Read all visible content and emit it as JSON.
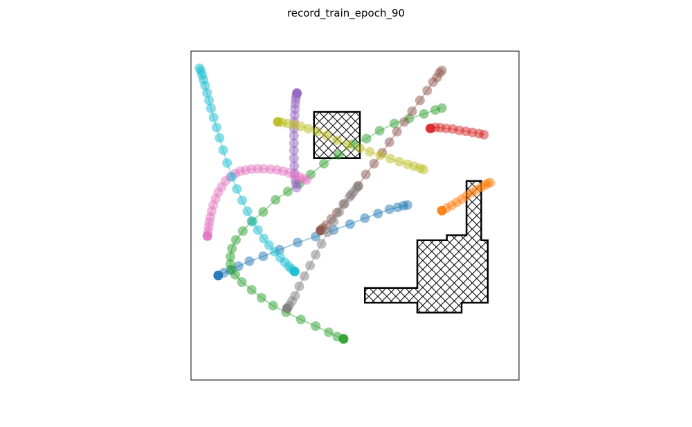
{
  "title": "record_train_epoch_90",
  "chart_data": {
    "type": "scatter",
    "title": "record_train_epoch_90",
    "xlabel": "",
    "ylabel": "",
    "xlim": [
      0,
      100
    ],
    "ylim": [
      0,
      100
    ],
    "grid": false,
    "axis_ticks": false,
    "obstacles": [
      {
        "name": "obstacle-square",
        "hatch": "cross",
        "points": [
          [
            37.5,
            81.5
          ],
          [
            51.5,
            81.5
          ],
          [
            51.5,
            67.5
          ],
          [
            37.5,
            67.5
          ]
        ]
      },
      {
        "name": "obstacle-cross",
        "hatch": "cross",
        "points": [
          [
            53,
            28
          ],
          [
            69,
            28
          ],
          [
            69,
            42.5
          ],
          [
            78,
            42.5
          ],
          [
            78,
            44
          ],
          [
            84,
            44
          ],
          [
            84,
            60.5
          ],
          [
            88.5,
            60.5
          ],
          [
            88.5,
            42.5
          ],
          [
            90.5,
            42.5
          ],
          [
            90.5,
            23.5
          ],
          [
            82.5,
            23.5
          ],
          [
            82.5,
            20.5
          ],
          [
            69,
            20.5
          ],
          [
            69,
            23.5
          ],
          [
            53,
            23.5
          ]
        ]
      }
    ],
    "series": [
      {
        "color": "#1f77b4",
        "points": [
          [
            8.3,
            31.8
          ],
          [
            10,
            32.6
          ],
          [
            12,
            33.4
          ],
          [
            14.5,
            34.6
          ],
          [
            17.8,
            36.1
          ],
          [
            22,
            37.6
          ],
          [
            27,
            39.6
          ],
          [
            32.5,
            41.8
          ],
          [
            38,
            43.6
          ],
          [
            43.5,
            45.6
          ],
          [
            48.5,
            47.4
          ],
          [
            53,
            49.2
          ],
          [
            57,
            50.6
          ],
          [
            60.5,
            51.9
          ],
          [
            63,
            52.5
          ],
          [
            64.8,
            53
          ],
          [
            66,
            53.2
          ]
        ]
      },
      {
        "color": "#ff7f0e",
        "points": [
          [
            76.5,
            51.5
          ],
          [
            78,
            52.3
          ],
          [
            79.5,
            53.1
          ],
          [
            81,
            54
          ],
          [
            82.5,
            55
          ],
          [
            84,
            56
          ],
          [
            85.5,
            57
          ],
          [
            87,
            57.8
          ],
          [
            88.5,
            58.6
          ],
          [
            89.7,
            59.3
          ],
          [
            90.5,
            59.8
          ],
          [
            91.2,
            60
          ]
        ]
      },
      {
        "color": "#2ca02c",
        "points": [
          [
            46.5,
            12.5
          ],
          [
            44.6,
            13.2
          ],
          [
            42,
            14.5
          ],
          [
            38,
            16.4
          ],
          [
            33.5,
            18.4
          ],
          [
            29,
            20.6
          ],
          [
            25,
            22.6
          ],
          [
            21.5,
            25
          ],
          [
            18.5,
            27.4
          ],
          [
            15.5,
            29.8
          ],
          [
            13.5,
            32
          ],
          [
            12.5,
            33.5
          ],
          [
            12,
            35.2
          ],
          [
            12,
            37.5
          ],
          [
            12.5,
            40
          ],
          [
            13.7,
            42.6
          ],
          [
            15.8,
            45.3
          ],
          [
            18.5,
            48.3
          ],
          [
            22,
            51.1
          ],
          [
            25.8,
            54.8
          ],
          [
            29.5,
            57.3
          ],
          [
            33,
            59.7
          ],
          [
            36.5,
            62.5
          ],
          [
            40.5,
            65.8
          ],
          [
            45,
            68.5
          ],
          [
            49.5,
            71.7
          ],
          [
            53.5,
            73.4
          ],
          [
            57.5,
            75.8
          ],
          [
            62,
            78
          ],
          [
            66.5,
            79.5
          ],
          [
            71,
            80.9
          ],
          [
            74.5,
            82.1
          ],
          [
            76.5,
            82.7
          ]
        ]
      },
      {
        "color": "#d62728",
        "points": [
          [
            73,
            76.5
          ],
          [
            74.5,
            76.8
          ],
          [
            76,
            76.7
          ],
          [
            77.8,
            76.5
          ],
          [
            79.8,
            76.3
          ],
          [
            81.8,
            75.9
          ],
          [
            83.8,
            75.6
          ],
          [
            85.8,
            75.3
          ],
          [
            87.8,
            74.9
          ],
          [
            89.3,
            74.6
          ]
        ]
      },
      {
        "color": "#9467bd",
        "points": [
          [
            32.3,
            87.2
          ],
          [
            32.1,
            86.4
          ],
          [
            31.9,
            85.3
          ],
          [
            31.8,
            84
          ],
          [
            31.7,
            82.4
          ],
          [
            31.6,
            80.5
          ],
          [
            31.5,
            78.5
          ],
          [
            31.4,
            76.4
          ],
          [
            31.4,
            74.3
          ],
          [
            31.4,
            72
          ],
          [
            31.4,
            69.8
          ],
          [
            31.4,
            67.4
          ],
          [
            31.5,
            65.1
          ],
          [
            31.6,
            62.8
          ],
          [
            31.8,
            60.9
          ],
          [
            32,
            59.6
          ],
          [
            32.2,
            58.5
          ]
        ]
      },
      {
        "color": "#8c564b",
        "points": [
          [
            39.5,
            45.5
          ],
          [
            40.2,
            46.2
          ],
          [
            41.2,
            47.1
          ],
          [
            42.8,
            49
          ],
          [
            44.5,
            50.9
          ],
          [
            46.5,
            53.5
          ],
          [
            48.8,
            56.3
          ],
          [
            51,
            59
          ],
          [
            53.3,
            62.5
          ],
          [
            55.8,
            65.8
          ],
          [
            58.3,
            69.1
          ],
          [
            60.5,
            72.3
          ],
          [
            62.8,
            75.5
          ],
          [
            65,
            78.5
          ],
          [
            67.4,
            81.7
          ],
          [
            69.8,
            85
          ],
          [
            72,
            88
          ],
          [
            73.8,
            90.6
          ],
          [
            75,
            92
          ],
          [
            75.8,
            93.4
          ],
          [
            76.5,
            94.1
          ]
        ]
      },
      {
        "color": "#e377c2",
        "points": [
          [
            5,
            43.8
          ],
          [
            5.2,
            45.2
          ],
          [
            5.4,
            46.6
          ],
          [
            5.6,
            48
          ],
          [
            5.9,
            49.5
          ],
          [
            6.3,
            51.3
          ],
          [
            6.8,
            53.2
          ],
          [
            7.5,
            55.1
          ],
          [
            8.3,
            57
          ],
          [
            9.3,
            58.7
          ],
          [
            10.5,
            60.5
          ],
          [
            12,
            61.8
          ],
          [
            13.5,
            62.8
          ],
          [
            15,
            63.5
          ],
          [
            16.6,
            63.8
          ],
          [
            18.4,
            64.1
          ],
          [
            20.3,
            64.2
          ],
          [
            22.2,
            64.2
          ],
          [
            24.2,
            64.1
          ],
          [
            26.2,
            63.9
          ],
          [
            28.1,
            63.5
          ],
          [
            30,
            63
          ],
          [
            31.6,
            62.3
          ],
          [
            33.1,
            61.7
          ],
          [
            34.4,
            61.2
          ],
          [
            35.2,
            60.8
          ]
        ]
      },
      {
        "color": "#7f7f7f",
        "points": [
          [
            29.3,
            21.8
          ],
          [
            30,
            22.7
          ],
          [
            30.8,
            24
          ],
          [
            31.7,
            25.6
          ],
          [
            33,
            28.5
          ],
          [
            34.6,
            31.6
          ],
          [
            36.3,
            34.8
          ],
          [
            38,
            38.1
          ],
          [
            39.8,
            41.4
          ],
          [
            41.7,
            44.9
          ],
          [
            43.5,
            48.2
          ],
          [
            45.2,
            51.1
          ],
          [
            46.8,
            53.6
          ],
          [
            48.3,
            55.6
          ],
          [
            49.6,
            57.2
          ],
          [
            50.5,
            58.4
          ],
          [
            51,
            59
          ]
        ]
      },
      {
        "color": "#bcbd22",
        "points": [
          [
            26.5,
            78.5
          ],
          [
            27.8,
            78.3
          ],
          [
            29.5,
            78
          ],
          [
            31.5,
            77.6
          ],
          [
            33.5,
            77.1
          ],
          [
            35.8,
            76.4
          ],
          [
            38.5,
            75.5
          ],
          [
            41.3,
            74.4
          ],
          [
            44.5,
            72.9
          ],
          [
            47.8,
            71.6
          ],
          [
            51.5,
            70.5
          ],
          [
            54.5,
            69.4
          ],
          [
            57.7,
            68.3
          ],
          [
            60.8,
            67.3
          ],
          [
            63.5,
            66.4
          ],
          [
            66,
            65.6
          ],
          [
            68,
            65
          ],
          [
            69.8,
            64.4
          ],
          [
            70.9,
            64
          ]
        ]
      },
      {
        "color": "#17becf",
        "points": [
          [
            31.6,
            33
          ],
          [
            30.6,
            33.8
          ],
          [
            29.8,
            34.6
          ],
          [
            28.6,
            35.8
          ],
          [
            27.2,
            37.2
          ],
          [
            25.5,
            39
          ],
          [
            23.8,
            41
          ],
          [
            22.2,
            43
          ],
          [
            20.4,
            45.6
          ],
          [
            18.8,
            48.2
          ],
          [
            17.2,
            51.3
          ],
          [
            15.6,
            54.6
          ],
          [
            14,
            58.1
          ],
          [
            12.5,
            61.8
          ],
          [
            11,
            66
          ],
          [
            9.8,
            69.9
          ],
          [
            8.7,
            73.6
          ],
          [
            7.8,
            76.8
          ],
          [
            6.9,
            79.8
          ],
          [
            6.1,
            82.6
          ],
          [
            5.5,
            85
          ],
          [
            4.9,
            87.3
          ],
          [
            4.3,
            89.5
          ],
          [
            3.8,
            91.3
          ],
          [
            3.4,
            92.8
          ],
          [
            3,
            94
          ],
          [
            2.6,
            94.8
          ]
        ]
      }
    ]
  }
}
